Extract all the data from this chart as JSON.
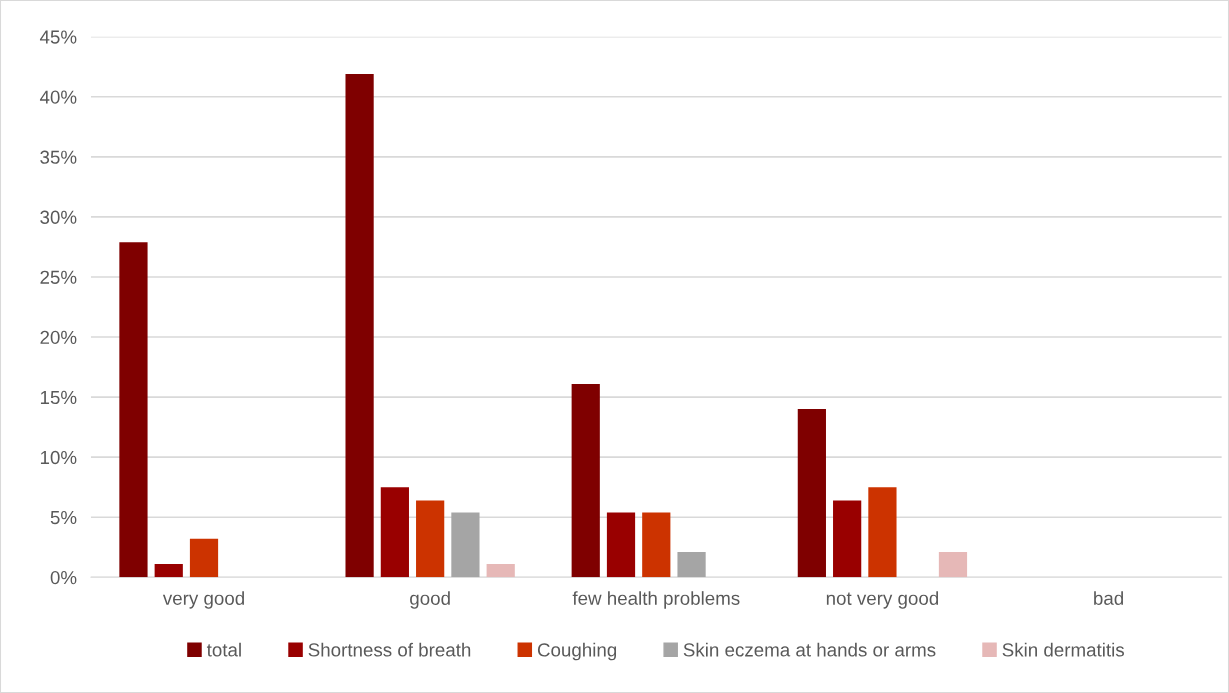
{
  "chart_data": {
    "type": "bar",
    "categories": [
      "very good",
      "good",
      "few health problems",
      "not very good",
      "bad"
    ],
    "series": [
      {
        "name": "total",
        "color": "#7f0000",
        "values": [
          27.9,
          41.9,
          16.1,
          14.0,
          0
        ]
      },
      {
        "name": "Shortness of breath",
        "color": "#990000",
        "values": [
          1.1,
          7.5,
          5.4,
          6.4,
          0
        ]
      },
      {
        "name": "Coughing",
        "color": "#cc3300",
        "values": [
          3.2,
          6.4,
          5.4,
          7.5,
          0
        ]
      },
      {
        "name": "Skin eczema at hands or arms",
        "color": "#a5a5a5",
        "values": [
          0,
          5.4,
          2.1,
          0,
          0
        ]
      },
      {
        "name": "Skin dermatitis",
        "color": "#e6b8b7",
        "values": [
          0,
          1.1,
          0,
          2.1,
          0
        ]
      }
    ],
    "ylim": [
      0,
      45
    ],
    "yticks": [
      {
        "value": 0,
        "label": "0%"
      },
      {
        "value": 5,
        "label": "5%"
      },
      {
        "value": 10,
        "label": "10%"
      },
      {
        "value": 15,
        "label": "15%"
      },
      {
        "value": 20,
        "label": "20%"
      },
      {
        "value": 25,
        "label": "25%"
      },
      {
        "value": 30,
        "label": "30%"
      },
      {
        "value": 35,
        "label": "35%"
      },
      {
        "value": 40,
        "label": "40%"
      },
      {
        "value": 45,
        "label": "45%"
      }
    ],
    "grid": "y",
    "legend": "bottom"
  }
}
